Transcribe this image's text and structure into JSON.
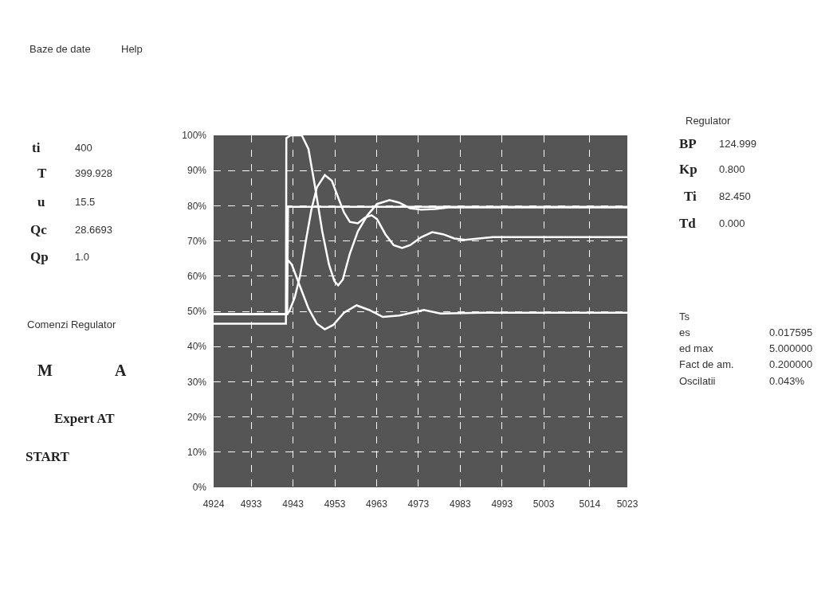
{
  "chart_data": {
    "type": "line",
    "xlim": [
      4924,
      5023
    ],
    "xticks": [
      4924,
      4933,
      4943,
      4953,
      4963,
      4973,
      4983,
      4993,
      5003,
      5014,
      5023
    ],
    "ylim": [
      0,
      100
    ],
    "yticks": [
      {
        "value": 0,
        "label": "0%"
      },
      {
        "value": 10,
        "label": "10%"
      },
      {
        "value": 20,
        "label": "20%"
      },
      {
        "value": 30,
        "label": "30%"
      },
      {
        "value": 40,
        "label": "40%"
      },
      {
        "value": 50,
        "label": "50%"
      },
      {
        "value": 60,
        "label": "60%"
      },
      {
        "value": 70,
        "label": "70%"
      },
      {
        "value": 80,
        "label": "80%"
      },
      {
        "value": 90,
        "label": "90%"
      },
      {
        "value": 100,
        "label": "100%"
      }
    ],
    "grid": true,
    "marker": "none",
    "line_style": "solid",
    "series": [
      {
        "color": "#ffffff",
        "x": [
          4924,
          4941.6,
          4941.8,
          5023
        ],
        "values": [
          49.2,
          49.2,
          79.7,
          79.7
        ]
      },
      {
        "color": "#ffffff",
        "x": [
          4924,
          4941.3,
          4941.4,
          4942.4,
          4945.1,
          4946.7,
          4948.3,
          4950.0,
          4951.6,
          4952.9,
          4953.8,
          4954.9,
          4956.6,
          4958.5,
          4960.8,
          4963.1,
          4966.1,
          4968.4,
          4971.0,
          4973.7,
          4977.0,
          4980.2,
          4988.1,
          5023
        ],
        "values": [
          46.5,
          46.5,
          99.2,
          100,
          100,
          96.1,
          85.2,
          72.7,
          63.3,
          58.6,
          57.4,
          59.0,
          66.4,
          72.7,
          77.3,
          80.5,
          81.6,
          80.9,
          79.3,
          78.9,
          79.1,
          79.5,
          79.5,
          79.5
        ]
      },
      {
        "color": "#ffffff",
        "x": [
          4924,
          4941.6,
          4942.1,
          4943.4,
          4944.7,
          4946.0,
          4947.4,
          4948.7,
          4950.6,
          4952.3,
          4953.9,
          4955.2,
          4956.6,
          4958.5,
          4960.2,
          4961.8,
          4963.1,
          4965.1,
          4967.1,
          4969.1,
          4971.0,
          4973.7,
          4976.3,
          4978.9,
          4981.6,
          4984.2,
          4990.8,
          5023
        ],
        "values": [
          49.2,
          49.2,
          50.0,
          53.9,
          60.2,
          69.5,
          78.9,
          85.2,
          88.7,
          87.1,
          82.0,
          78.1,
          75.4,
          75.0,
          76.6,
          77.3,
          76.2,
          71.9,
          68.8,
          68.0,
          68.8,
          71.1,
          72.5,
          71.9,
          70.7,
          70.3,
          71.1,
          71.1
        ]
      },
      {
        "color": "#ffffff",
        "x": [
          4924,
          4941.4,
          4941.6,
          4942.7,
          4944.7,
          4946.7,
          4948.7,
          4950.6,
          4952.6,
          4955.2,
          4958.2,
          4961.2,
          4964.5,
          4968.4,
          4974.3,
          4978.3,
          4988.1,
          5023
        ],
        "values": [
          49.2,
          49.2,
          64.8,
          63.3,
          57.0,
          50.8,
          46.5,
          44.9,
          46.1,
          49.6,
          51.7,
          50.4,
          48.4,
          48.8,
          50.4,
          49.4,
          49.6,
          49.6
        ]
      }
    ],
    "annotations": [
      "Baze de date",
      "Help",
      "ti",
      "400",
      "T",
      "399.928",
      "u",
      "15.5",
      "Qc",
      "28.6693",
      "Qp",
      "1.0",
      "Comenzi Regulator",
      "M",
      "A",
      "Expert AT",
      "START",
      "Regulator",
      "BP",
      "124.999",
      "Kp",
      "0.800",
      "Ti",
      "82.450",
      "Td",
      "0.000",
      "Ts",
      "es",
      "0.017595",
      "ed max",
      "5.000000",
      "Fact de am.",
      "0.200000",
      "Oscilatii",
      "0.043%"
    ]
  }
}
